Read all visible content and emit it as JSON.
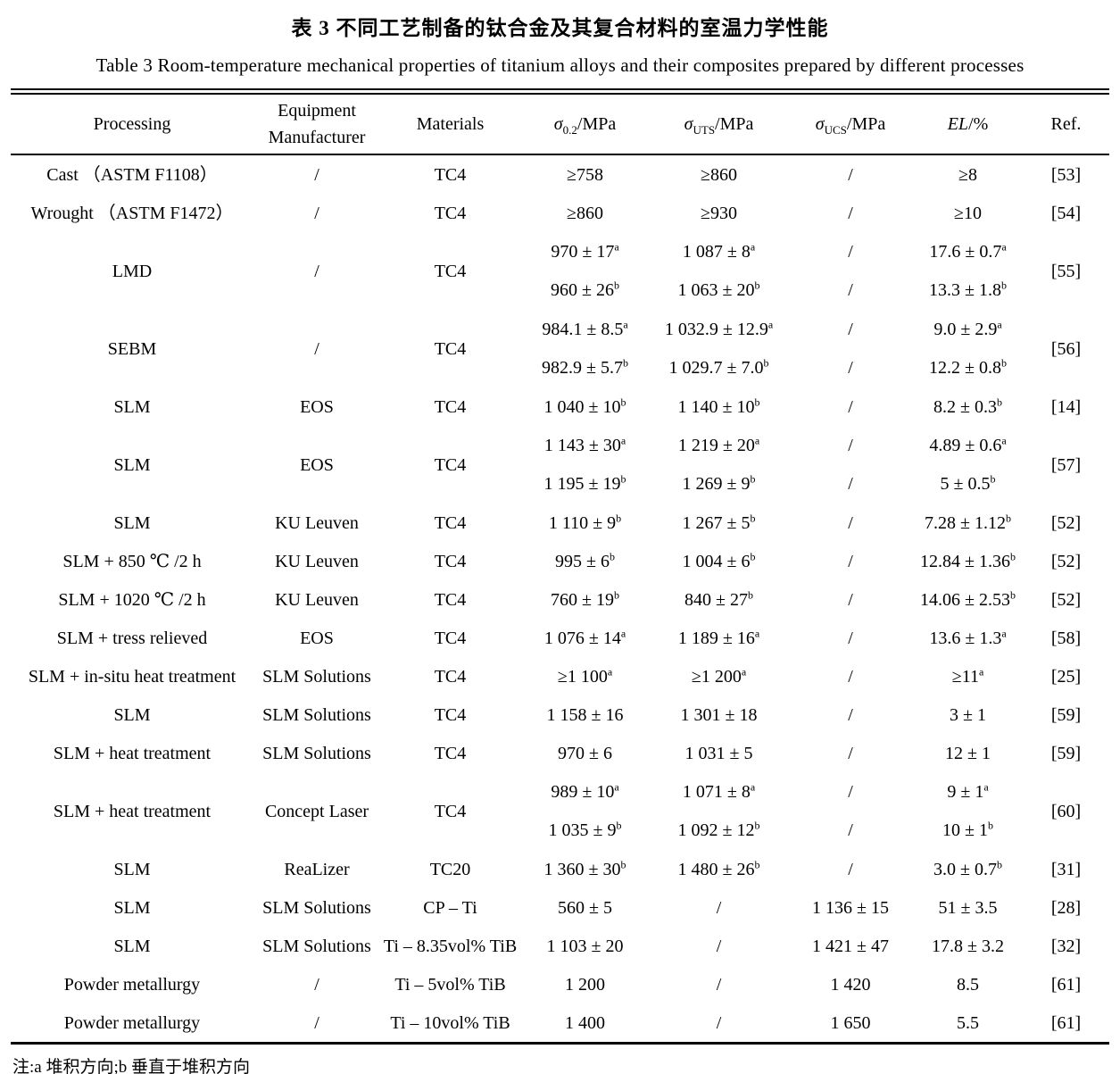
{
  "title_cn": "表 3  不同工艺制备的钛合金及其复合材料的室温力学性能",
  "title_en": "Table 3  Room-temperature mechanical properties of titanium alloys and their composites prepared by different processes",
  "footnote": "注:a 堆积方向;b 垂直于堆积方向",
  "table": {
    "headers": {
      "processing": "Processing",
      "manufacturer_line1": "Equipment",
      "manufacturer_line2": "Manufacturer",
      "materials": "Materials",
      "sigma02": {
        "symbol": "σ",
        "sub": "0.2",
        "unit": "/MPa"
      },
      "sigmaUTS": {
        "symbol": "σ",
        "sub": "UTS",
        "unit": "/MPa"
      },
      "sigmaUCS": {
        "symbol": "σ",
        "sub": "UCS",
        "unit": "/MPa"
      },
      "el": {
        "symbol": "EL",
        "unit": "/%"
      },
      "ref": "Ref."
    },
    "rows": [
      {
        "processing": "Cast （ASTM F1108）",
        "manufacturer": "/",
        "materials": "TC4",
        "sigma02": [
          {
            "v": "≥758"
          }
        ],
        "sigmaUTS": [
          {
            "v": "≥860"
          }
        ],
        "sigmaUCS": [
          {
            "v": "/"
          }
        ],
        "el": [
          {
            "v": "≥8"
          }
        ],
        "ref": "[53]"
      },
      {
        "processing": "Wrought （ASTM F1472）",
        "manufacturer": "/",
        "materials": "TC4",
        "sigma02": [
          {
            "v": "≥860"
          }
        ],
        "sigmaUTS": [
          {
            "v": "≥930"
          }
        ],
        "sigmaUCS": [
          {
            "v": "/"
          }
        ],
        "el": [
          {
            "v": "≥10"
          }
        ],
        "ref": "[54]"
      },
      {
        "processing": "LMD",
        "manufacturer": "/",
        "materials": "TC4",
        "sigma02": [
          {
            "v": "970 ± 17",
            "s": "a"
          },
          {
            "v": "960 ± 26",
            "s": "b"
          }
        ],
        "sigmaUTS": [
          {
            "v": "1 087 ± 8",
            "s": "a"
          },
          {
            "v": "1 063 ± 20",
            "s": "b"
          }
        ],
        "sigmaUCS": [
          {
            "v": "/"
          },
          {
            "v": "/"
          }
        ],
        "el": [
          {
            "v": "17.6 ± 0.7",
            "s": "a"
          },
          {
            "v": "13.3 ± 1.8",
            "s": "b"
          }
        ],
        "ref": "[55]"
      },
      {
        "processing": "SEBM",
        "manufacturer": "/",
        "materials": "TC4",
        "sigma02": [
          {
            "v": "984.1 ± 8.5",
            "s": "a"
          },
          {
            "v": "982.9 ± 5.7",
            "s": "b"
          }
        ],
        "sigmaUTS": [
          {
            "v": "1 032.9 ± 12.9",
            "s": "a"
          },
          {
            "v": "1 029.7 ± 7.0",
            "s": "b"
          }
        ],
        "sigmaUCS": [
          {
            "v": "/"
          },
          {
            "v": "/"
          }
        ],
        "el": [
          {
            "v": "9.0 ± 2.9",
            "s": "a"
          },
          {
            "v": "12.2 ± 0.8",
            "s": "b"
          }
        ],
        "ref": "[56]"
      },
      {
        "processing": "SLM",
        "manufacturer": "EOS",
        "materials": "TC4",
        "sigma02": [
          {
            "v": "1 040 ± 10",
            "s": "b"
          }
        ],
        "sigmaUTS": [
          {
            "v": "1 140 ± 10",
            "s": "b"
          }
        ],
        "sigmaUCS": [
          {
            "v": "/"
          }
        ],
        "el": [
          {
            "v": "8.2 ± 0.3",
            "s": "b"
          }
        ],
        "ref": "[14]"
      },
      {
        "processing": "SLM",
        "manufacturer": "EOS",
        "materials": "TC4",
        "sigma02": [
          {
            "v": "1 143 ± 30",
            "s": "a"
          },
          {
            "v": "1 195 ± 19",
            "s": "b"
          }
        ],
        "sigmaUTS": [
          {
            "v": "1 219 ± 20",
            "s": "a"
          },
          {
            "v": "1 269 ± 9",
            "s": "b"
          }
        ],
        "sigmaUCS": [
          {
            "v": "/"
          },
          {
            "v": "/"
          }
        ],
        "el": [
          {
            "v": "4.89 ± 0.6",
            "s": "a"
          },
          {
            "v": "5 ± 0.5",
            "s": "b"
          }
        ],
        "ref": "[57]"
      },
      {
        "processing": "SLM",
        "manufacturer": "KU Leuven",
        "materials": "TC4",
        "sigma02": [
          {
            "v": "1 110 ± 9",
            "s": "b"
          }
        ],
        "sigmaUTS": [
          {
            "v": "1 267 ± 5",
            "s": "b"
          }
        ],
        "sigmaUCS": [
          {
            "v": "/"
          }
        ],
        "el": [
          {
            "v": "7.28 ± 1.12",
            "s": "b"
          }
        ],
        "ref": "[52]"
      },
      {
        "processing": "SLM + 850 ℃ /2 h",
        "manufacturer": "KU Leuven",
        "materials": "TC4",
        "sigma02": [
          {
            "v": "995 ± 6",
            "s": "b"
          }
        ],
        "sigmaUTS": [
          {
            "v": "1 004 ± 6",
            "s": "b"
          }
        ],
        "sigmaUCS": [
          {
            "v": "/"
          }
        ],
        "el": [
          {
            "v": "12.84 ± 1.36",
            "s": "b"
          }
        ],
        "ref": "[52]"
      },
      {
        "processing": "SLM + 1020 ℃ /2 h",
        "manufacturer": "KU Leuven",
        "materials": "TC4",
        "sigma02": [
          {
            "v": "760 ± 19",
            "s": "b"
          }
        ],
        "sigmaUTS": [
          {
            "v": "840 ± 27",
            "s": "b"
          }
        ],
        "sigmaUCS": [
          {
            "v": "/"
          }
        ],
        "el": [
          {
            "v": "14.06 ± 2.53",
            "s": "b"
          }
        ],
        "ref": "[52]"
      },
      {
        "processing": "SLM + tress relieved",
        "manufacturer": "EOS",
        "materials": "TC4",
        "sigma02": [
          {
            "v": "1 076 ± 14",
            "s": "a"
          }
        ],
        "sigmaUTS": [
          {
            "v": "1 189 ± 16",
            "s": "a"
          }
        ],
        "sigmaUCS": [
          {
            "v": "/"
          }
        ],
        "el": [
          {
            "v": "13.6 ± 1.3",
            "s": "a"
          }
        ],
        "ref": "[58]"
      },
      {
        "processing": "SLM + in-situ heat treatment",
        "manufacturer": "SLM Solutions",
        "materials": "TC4",
        "sigma02": [
          {
            "v": "≥1 100",
            "s": "a"
          }
        ],
        "sigmaUTS": [
          {
            "v": "≥1 200",
            "s": "a"
          }
        ],
        "sigmaUCS": [
          {
            "v": "/"
          }
        ],
        "el": [
          {
            "v": "≥11",
            "s": "a"
          }
        ],
        "ref": "[25]"
      },
      {
        "processing": "SLM",
        "manufacturer": "SLM Solutions",
        "materials": "TC4",
        "sigma02": [
          {
            "v": "1 158 ± 16"
          }
        ],
        "sigmaUTS": [
          {
            "v": "1 301 ± 18"
          }
        ],
        "sigmaUCS": [
          {
            "v": "/"
          }
        ],
        "el": [
          {
            "v": "3 ± 1"
          }
        ],
        "ref": "[59]"
      },
      {
        "processing": "SLM +  heat treatment",
        "manufacturer": "SLM Solutions",
        "materials": "TC4",
        "sigma02": [
          {
            "v": "970 ± 6"
          }
        ],
        "sigmaUTS": [
          {
            "v": "1 031 ± 5"
          }
        ],
        "sigmaUCS": [
          {
            "v": "/"
          }
        ],
        "el": [
          {
            "v": "12 ± 1"
          }
        ],
        "ref": "[59]"
      },
      {
        "processing": "SLM + heat treatment",
        "manufacturer": "Concept Laser",
        "materials": "TC4",
        "sigma02": [
          {
            "v": "989 ± 10",
            "s": "a"
          },
          {
            "v": "1 035 ± 9",
            "s": "b"
          }
        ],
        "sigmaUTS": [
          {
            "v": "1 071 ± 8",
            "s": "a"
          },
          {
            "v": "1 092 ± 12",
            "s": "b"
          }
        ],
        "sigmaUCS": [
          {
            "v": "/"
          },
          {
            "v": "/"
          }
        ],
        "el": [
          {
            "v": "9 ± 1",
            "s": "a"
          },
          {
            "v": "10 ± 1",
            "s": "b"
          }
        ],
        "ref": "[60]"
      },
      {
        "processing": "SLM",
        "manufacturer": "ReaLizer",
        "materials": "TC20",
        "sigma02": [
          {
            "v": "1 360 ± 30",
            "s": "b"
          }
        ],
        "sigmaUTS": [
          {
            "v": "1 480 ± 26",
            "s": "b"
          }
        ],
        "sigmaUCS": [
          {
            "v": "/"
          }
        ],
        "el": [
          {
            "v": "3.0 ± 0.7",
            "s": "b"
          }
        ],
        "ref": "[31]"
      },
      {
        "processing": "SLM",
        "manufacturer": "SLM Solutions",
        "materials": "CP – Ti",
        "sigma02": [
          {
            "v": "560 ± 5"
          }
        ],
        "sigmaUTS": [
          {
            "v": "/"
          }
        ],
        "sigmaUCS": [
          {
            "v": "1 136 ± 15"
          }
        ],
        "el": [
          {
            "v": "51 ± 3.5"
          }
        ],
        "ref": "[28]"
      },
      {
        "processing": "SLM",
        "manufacturer": "SLM Solutions",
        "materials": "Ti – 8.35vol% TiB",
        "sigma02": [
          {
            "v": "1 103 ± 20"
          }
        ],
        "sigmaUTS": [
          {
            "v": "/"
          }
        ],
        "sigmaUCS": [
          {
            "v": "1 421 ± 47"
          }
        ],
        "el": [
          {
            "v": "17.8 ± 3.2"
          }
        ],
        "ref": "[32]"
      },
      {
        "processing": "Powder metallurgy",
        "manufacturer": "/",
        "materials": "Ti – 5vol% TiB",
        "sigma02": [
          {
            "v": "1 200"
          }
        ],
        "sigmaUTS": [
          {
            "v": "/"
          }
        ],
        "sigmaUCS": [
          {
            "v": "1 420"
          }
        ],
        "el": [
          {
            "v": "8.5"
          }
        ],
        "ref": "[61]"
      },
      {
        "processing": "Powder metallurgy",
        "manufacturer": "/",
        "materials": "Ti – 10vol% TiB",
        "sigma02": [
          {
            "v": "1 400"
          }
        ],
        "sigmaUTS": [
          {
            "v": "/"
          }
        ],
        "sigmaUCS": [
          {
            "v": "1 650"
          }
        ],
        "el": [
          {
            "v": "5.5"
          }
        ],
        "ref": "[61]"
      }
    ]
  }
}
